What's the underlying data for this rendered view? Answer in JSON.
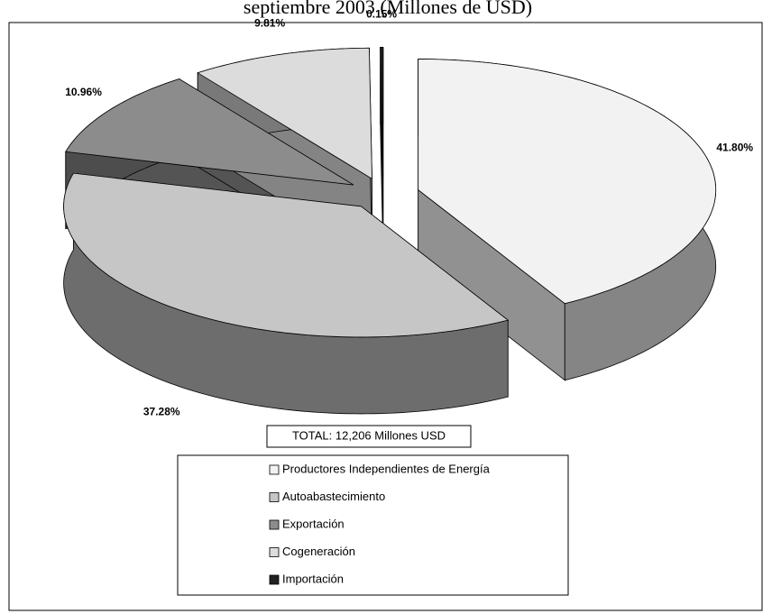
{
  "chart_data": {
    "type": "pie",
    "title": "septiembre 2003 (Millones de USD)",
    "categories": [
      "Productores Independientes de Energía",
      "Autoabastecimiento",
      "Exportación",
      "Cogeneración",
      "Importación"
    ],
    "values": [
      41.8,
      37.28,
      10.96,
      9.81,
      0.15
    ],
    "value_labels": [
      "41.80%",
      "37.28%",
      "10.96%",
      "9.81%",
      "0.15%"
    ],
    "colors": [
      "#f2f2f2",
      "#c6c6c6",
      "#8c8c8c",
      "#dcdcdc",
      "#222222"
    ],
    "annotation": "TOTAL: 12,206 Millones USD"
  }
}
